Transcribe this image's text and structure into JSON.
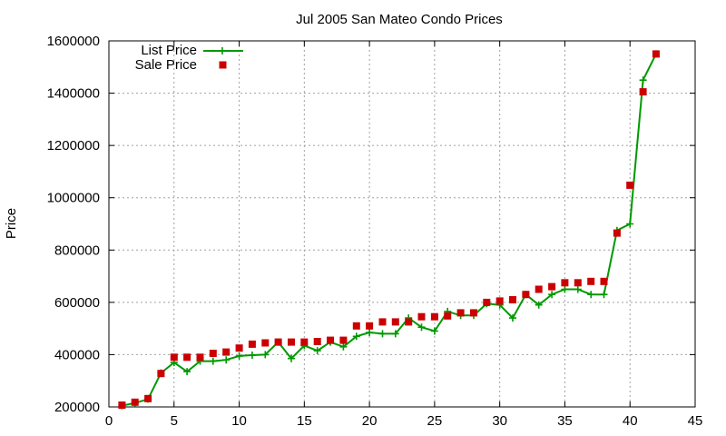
{
  "chart_data": {
    "type": "line",
    "title": "Jul 2005 San Mateo Condo Prices",
    "xlabel": "",
    "ylabel": "Price",
    "xlim": [
      0,
      45
    ],
    "ylim": [
      200000,
      1600000
    ],
    "x_ticks": [
      0,
      5,
      10,
      15,
      20,
      25,
      30,
      35,
      40,
      45
    ],
    "y_ticks": [
      200000,
      400000,
      600000,
      800000,
      1000000,
      1200000,
      1400000,
      1600000
    ],
    "grid": true,
    "legend_position": "top-left",
    "series": [
      {
        "name": "List Price",
        "style": "line+points",
        "color": "#009900",
        "x": [
          1,
          2,
          3,
          4,
          5,
          6,
          7,
          8,
          9,
          10,
          11,
          12,
          13,
          14,
          15,
          16,
          17,
          18,
          19,
          20,
          21,
          22,
          23,
          24,
          25,
          26,
          27,
          28,
          29,
          30,
          31,
          32,
          33,
          34,
          35,
          36,
          37,
          38,
          39,
          40,
          41,
          42
        ],
        "values": [
          205000,
          215000,
          230000,
          330000,
          370000,
          335000,
          375000,
          375000,
          380000,
          395000,
          398000,
          400000,
          448000,
          385000,
          435000,
          415000,
          448000,
          430000,
          470000,
          485000,
          480000,
          480000,
          540000,
          505000,
          490000,
          565000,
          550000,
          550000,
          595000,
          590000,
          540000,
          630000,
          590000,
          630000,
          650000,
          650000,
          630000,
          630000,
          875000,
          900000,
          1450000,
          1550000
        ]
      },
      {
        "name": "Sale Price",
        "style": "points",
        "color": "#cc0000",
        "x": [
          1,
          2,
          3,
          4,
          5,
          6,
          7,
          8,
          9,
          10,
          11,
          12,
          13,
          14,
          15,
          16,
          17,
          18,
          19,
          20,
          21,
          22,
          23,
          24,
          25,
          26,
          27,
          28,
          29,
          30,
          31,
          32,
          33,
          34,
          35,
          36,
          37,
          38,
          39,
          40,
          41,
          42
        ],
        "values": [
          207000,
          218000,
          232000,
          328000,
          390000,
          390000,
          390000,
          405000,
          410000,
          425000,
          440000,
          445000,
          448000,
          448000,
          448000,
          450000,
          455000,
          455000,
          510000,
          510000,
          525000,
          525000,
          525000,
          545000,
          545000,
          548000,
          560000,
          560000,
          600000,
          605000,
          610000,
          630000,
          650000,
          660000,
          675000,
          675000,
          680000,
          680000,
          865000,
          1048000,
          1405000,
          1550000
        ]
      }
    ]
  }
}
